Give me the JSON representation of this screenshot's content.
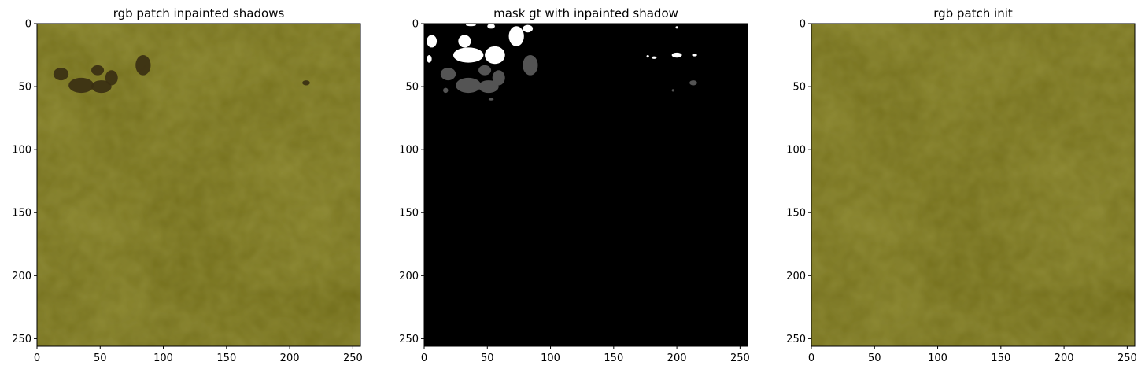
{
  "chart_data": [
    {
      "type": "heatmap",
      "image_kind": "rgb",
      "title": "rgb patch inpainted shadows",
      "xlim": [
        0,
        256
      ],
      "ylim": [
        256,
        0
      ],
      "xticks": [
        0,
        50,
        100,
        150,
        200,
        250
      ],
      "yticks": [
        0,
        50,
        100,
        150,
        200,
        250
      ],
      "base_color": "#6b6614",
      "shadow_color": "#3a2f12",
      "shadow_regions": [
        {
          "cx": 19,
          "cy": 40,
          "rx": 6,
          "ry": 5
        },
        {
          "cx": 35,
          "cy": 49,
          "rx": 10,
          "ry": 6
        },
        {
          "cx": 48,
          "cy": 37,
          "rx": 5,
          "ry": 4
        },
        {
          "cx": 51,
          "cy": 50,
          "rx": 8,
          "ry": 5
        },
        {
          "cx": 59,
          "cy": 43,
          "rx": 5,
          "ry": 6
        },
        {
          "cx": 84,
          "cy": 33,
          "rx": 6,
          "ry": 8
        },
        {
          "cx": 213,
          "cy": 47,
          "rx": 3,
          "ry": 2
        }
      ]
    },
    {
      "type": "heatmap",
      "image_kind": "mask",
      "title": "mask gt with inpainted shadow",
      "xlim": [
        0,
        256
      ],
      "ylim": [
        256,
        0
      ],
      "xticks": [
        0,
        50,
        100,
        150,
        200,
        250
      ],
      "yticks": [
        0,
        50,
        100,
        150,
        200,
        250
      ],
      "background_color": "#000000",
      "classes": [
        {
          "color": "#ffffff",
          "regions": [
            {
              "cx": 6,
              "cy": 14,
              "rx": 4,
              "ry": 5
            },
            {
              "cx": 4,
              "cy": 28,
              "rx": 2,
              "ry": 3
            },
            {
              "cx": 35,
              "cy": 25,
              "rx": 12,
              "ry": 6
            },
            {
              "cx": 32,
              "cy": 14,
              "rx": 5,
              "ry": 5
            },
            {
              "cx": 56,
              "cy": 25,
              "rx": 8,
              "ry": 7
            },
            {
              "cx": 73,
              "cy": 10,
              "rx": 6,
              "ry": 8
            },
            {
              "cx": 82,
              "cy": 4,
              "rx": 4,
              "ry": 3
            },
            {
              "cx": 37,
              "cy": 1,
              "rx": 4,
              "ry": 1
            },
            {
              "cx": 53,
              "cy": 2,
              "rx": 3,
              "ry": 2
            },
            {
              "cx": 200,
              "cy": 25,
              "rx": 4,
              "ry": 2
            },
            {
              "cx": 182,
              "cy": 27,
              "rx": 2,
              "ry": 1
            },
            {
              "cx": 214,
              "cy": 25,
              "rx": 2,
              "ry": 1
            },
            {
              "cx": 177,
              "cy": 26,
              "rx": 1,
              "ry": 1
            },
            {
              "cx": 200,
              "cy": 3,
              "rx": 1,
              "ry": 1
            }
          ]
        },
        {
          "color": "#545454",
          "regions": [
            {
              "cx": 19,
              "cy": 40,
              "rx": 6,
              "ry": 5
            },
            {
              "cx": 35,
              "cy": 49,
              "rx": 10,
              "ry": 6
            },
            {
              "cx": 48,
              "cy": 37,
              "rx": 5,
              "ry": 4
            },
            {
              "cx": 51,
              "cy": 50,
              "rx": 8,
              "ry": 5
            },
            {
              "cx": 59,
              "cy": 43,
              "rx": 5,
              "ry": 6
            },
            {
              "cx": 84,
              "cy": 33,
              "rx": 6,
              "ry": 8
            },
            {
              "cx": 213,
              "cy": 47,
              "rx": 3,
              "ry": 2
            },
            {
              "cx": 17,
              "cy": 53,
              "rx": 2,
              "ry": 2
            },
            {
              "cx": 53,
              "cy": 60,
              "rx": 2,
              "ry": 1
            },
            {
              "cx": 197,
              "cy": 53,
              "rx": 1,
              "ry": 1
            }
          ]
        }
      ]
    },
    {
      "type": "heatmap",
      "image_kind": "rgb",
      "title": "rgb patch init",
      "xlim": [
        0,
        256
      ],
      "ylim": [
        256,
        0
      ],
      "xticks": [
        0,
        50,
        100,
        150,
        200,
        250
      ],
      "yticks": [
        0,
        50,
        100,
        150,
        200,
        250
      ],
      "base_color": "#6b6614",
      "shadow_color": "#3a2f12",
      "shadow_regions": []
    }
  ]
}
